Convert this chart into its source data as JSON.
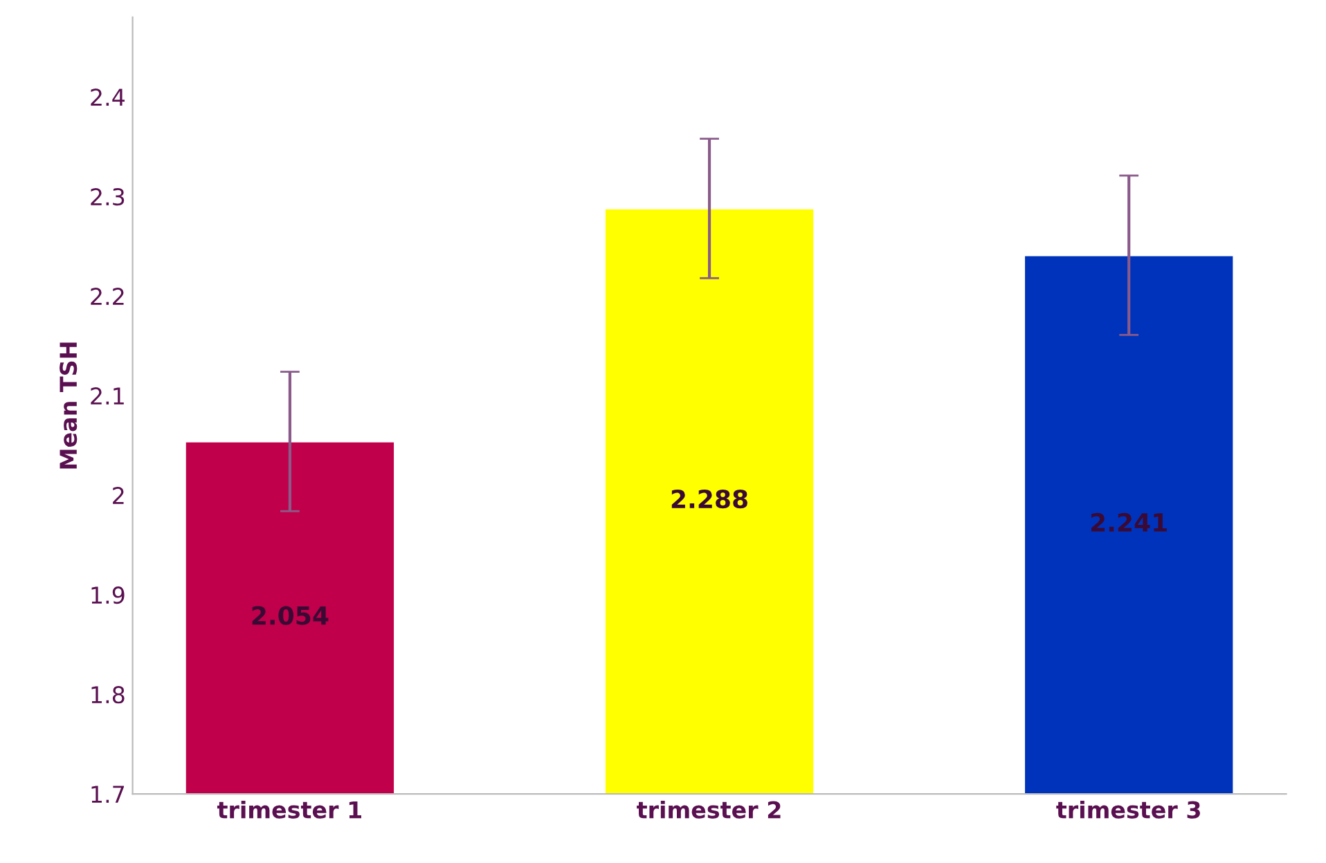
{
  "chart_data": {
    "type": "bar",
    "ylabel": "Mean TSH",
    "categories": [
      "trimester 1",
      "trimester 2",
      "trimester 3"
    ],
    "values": [
      2.054,
      2.288,
      2.241
    ],
    "colors": [
      "#c0004a",
      "#ffff00",
      "#0033bb"
    ],
    "errors": [
      0.07,
      0.07,
      0.08
    ],
    "data_labels": true,
    "ylim": [
      1.7,
      2.48
    ],
    "yticks": [
      1.7,
      1.8,
      1.9,
      2,
      2.1,
      2.2,
      2.3,
      2.4
    ],
    "grid": false,
    "legend": false
  }
}
